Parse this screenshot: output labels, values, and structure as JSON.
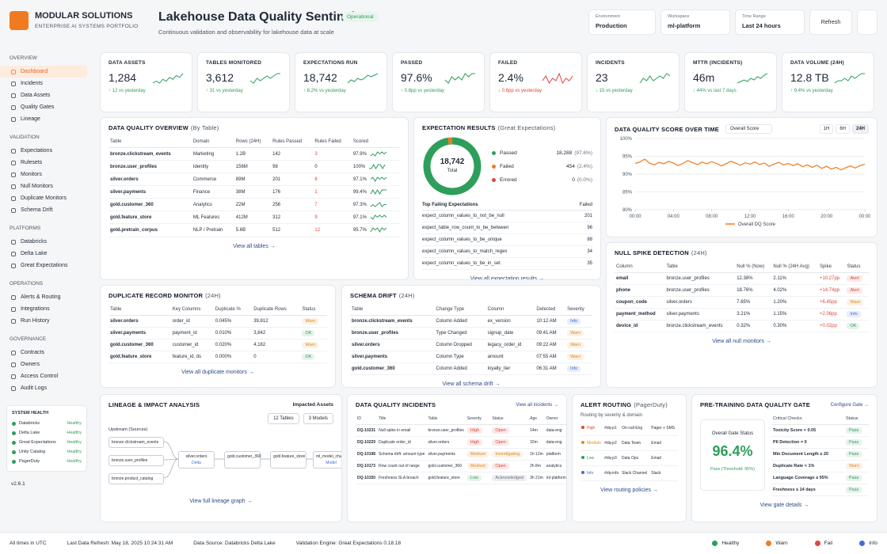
{
  "brand": {
    "name": "MODULAR SOLUTIONS",
    "tagline": "ENTERPRISE AI SYSTEMS PORTFOLIO"
  },
  "header": {
    "title": "Lakehouse Data Quality Sentinel",
    "status": "Operational",
    "subtitle": "Continuous validation and observability for lakehouse data at scale",
    "filters": [
      {
        "label": "Environment",
        "value": "Production"
      },
      {
        "label": "Workspace",
        "value": "ml-platform"
      },
      {
        "label": "Time Range",
        "value": "Last 24 hours"
      }
    ],
    "refresh": "Refresh"
  },
  "badge_colors": {
    "Warn": "#e08a1e",
    "OK": "#2e9e5b",
    "Alert": "#e0463b",
    "Info": "#3b6fd8",
    "High": "#e0463b",
    "Medium": "#e08a1e",
    "Low": "#2e9e5b",
    "Open": "#e0463b",
    "Investigating": "#e08a1e",
    "Acknowledged": "#6b7280",
    "Pass": "#2e9e5b",
    "Healthy": "#2e9e5b"
  },
  "sidebar": {
    "sections": [
      {
        "title": "OVERVIEW",
        "items": [
          {
            "label": "Dashboard",
            "active": true
          },
          {
            "label": "Incidents"
          },
          {
            "label": "Data Assets"
          },
          {
            "label": "Quality Gates"
          },
          {
            "label": "Lineage"
          }
        ]
      },
      {
        "title": "VALIDATION",
        "items": [
          {
            "label": "Expectations"
          },
          {
            "label": "Rulesets"
          },
          {
            "label": "Monitors"
          },
          {
            "label": "Null Monitors"
          },
          {
            "label": "Duplicate Monitors"
          },
          {
            "label": "Schema Drift"
          }
        ]
      },
      {
        "title": "PLATFORMS",
        "items": [
          {
            "label": "Databricks"
          },
          {
            "label": "Delta Lake"
          },
          {
            "label": "Great Expectations"
          }
        ]
      },
      {
        "title": "OPERATIONS",
        "items": [
          {
            "label": "Alerts & Routing"
          },
          {
            "label": "Integrations"
          },
          {
            "label": "Run History"
          }
        ]
      },
      {
        "title": "GOVERNANCE",
        "items": [
          {
            "label": "Contracts"
          },
          {
            "label": "Owners"
          },
          {
            "label": "Access Control"
          },
          {
            "label": "Audit Logs"
          }
        ]
      }
    ],
    "health_title": "SYSTEM HEALTH",
    "health": [
      {
        "label": "Databricks",
        "status": "Healthy"
      },
      {
        "label": "Delta Lake",
        "status": "Healthy"
      },
      {
        "label": "Great Expectations",
        "status": "Healthy"
      },
      {
        "label": "Unity Catalog",
        "status": "Healthy"
      },
      {
        "label": "PagerDuty",
        "status": "Healthy"
      }
    ],
    "version": "v2.6.1"
  },
  "kpis": [
    {
      "label": "DATA ASSETS",
      "value": "1,284",
      "delta": "↑ 12 vs yesterday",
      "color": "#2e9e5b",
      "spark": [
        4,
        5,
        4,
        6,
        5,
        7,
        6,
        8,
        7,
        9
      ]
    },
    {
      "label": "TABLES MONITORED",
      "value": "3,612",
      "delta": "↑ 31 vs yesterday",
      "color": "#2e9e5b",
      "spark": [
        5,
        4,
        6,
        5,
        6,
        7,
        6,
        7,
        8,
        8
      ]
    },
    {
      "label": "EXPECTATIONS RUN",
      "value": "18,742",
      "delta": "↑ 8.2% vs yesterday",
      "color": "#2e9e5b",
      "spark": [
        3,
        5,
        4,
        6,
        5,
        6,
        8,
        7,
        8,
        9
      ]
    },
    {
      "label": "PASSED",
      "value": "97.6%",
      "delta": "↑ 0.8pp vs yesterday",
      "color": "#2e9e5b",
      "spark": [
        6,
        5,
        7,
        6,
        7,
        6,
        8,
        7,
        8,
        8
      ]
    },
    {
      "label": "FAILED",
      "value": "2.4%",
      "delta": "↓ 0.6pp vs yesterday",
      "color": "#e0463b",
      "spark": [
        5,
        7,
        4,
        6,
        5,
        8,
        4,
        6,
        5,
        7
      ]
    },
    {
      "label": "INCIDENTS",
      "value": "23",
      "delta": "↓ 15 vs yesterday",
      "color": "#2e9e5b",
      "spark": [
        4,
        6,
        5,
        7,
        5,
        6,
        7,
        6,
        8,
        7
      ]
    },
    {
      "label": "MTTR (INCIDENTS)",
      "value": "46m",
      "delta": "↓ 44% vs last 7 days",
      "color": "#2e9e5b",
      "spark": [
        3,
        4,
        5,
        4,
        6,
        5,
        7,
        6,
        8,
        9
      ]
    },
    {
      "label": "DATA VOLUME (24H)",
      "value": "12.8 TB",
      "delta": "↑ 9.4% vs yesterday",
      "color": "#2e9e5b",
      "spark": [
        4,
        5,
        5,
        6,
        5,
        7,
        6,
        7,
        8,
        8
      ]
    }
  ],
  "quality_overview": {
    "title": "DATA QUALITY OVERVIEW",
    "sub": "(By Table)",
    "table": {
      "columns": [
        "Table",
        "Domain",
        "Rows (24H)",
        "Rules Passed",
        "Rules Failed",
        "Scored"
      ],
      "rows": [
        [
          "bronze.clickstream_events",
          "Marketing",
          "1.2B",
          "142",
          "3",
          "97.9%"
        ],
        [
          "bronze.user_profiles",
          "Identity",
          "156M",
          "98",
          "0",
          "100%"
        ],
        [
          "silver.orders",
          "Commerce",
          "89M",
          "201",
          "6",
          "97.1%"
        ],
        [
          "silver.payments",
          "Finance",
          "38M",
          "176",
          "1",
          "99.4%"
        ],
        [
          "gold.customer_360",
          "Analytics",
          "22M",
          "256",
          "7",
          "97.3%"
        ],
        [
          "gold.feature_store",
          "ML Features",
          "412M",
          "312",
          "9",
          "97.1%"
        ],
        [
          "gold.pretrain_corpus",
          "NLP / Pretrain",
          "5.6B",
          "512",
          "12",
          "95.7%"
        ]
      ],
      "highlight": {
        "col": 4,
        "color": "#e0463b"
      },
      "spark_color": "#2e9e5b",
      "sparks": [
        [
          5,
          6,
          5,
          7,
          6,
          7,
          6,
          7
        ],
        [
          6,
          6,
          7,
          6,
          7,
          7,
          6,
          7
        ],
        [
          5,
          6,
          4,
          6,
          5,
          6,
          5,
          6
        ],
        [
          6,
          7,
          6,
          7,
          6,
          7,
          7,
          7
        ],
        [
          5,
          6,
          5,
          6,
          7,
          5,
          6,
          6
        ],
        [
          5,
          4,
          6,
          5,
          6,
          5,
          6,
          5
        ],
        [
          4,
          6,
          5,
          6,
          4,
          6,
          5,
          6
        ]
      ]
    },
    "link": "View all tables →"
  },
  "expectations": {
    "title": "EXPECTATION RESULTS",
    "sub": "(Great Expectations)",
    "total": "18,742",
    "total_label": "Total",
    "segments": [
      {
        "name": "Passed",
        "value": 18288,
        "value_label": "18,288",
        "pct": "(97.6%)",
        "color": "#2e9e5b"
      },
      {
        "name": "Failed",
        "value": 454,
        "value_label": "454",
        "pct": "(2.4%)",
        "color": "#f07a1f"
      },
      {
        "name": "Errored",
        "value": 0,
        "value_label": "0",
        "pct": "(0.0%)",
        "color": "#e0463b"
      }
    ],
    "top_title": "Top Failing Expectations",
    "top_header": "Failed",
    "top": [
      [
        "expect_column_values_to_not_be_null",
        "201"
      ],
      [
        "expect_table_row_count_to_be_between",
        "96"
      ],
      [
        "expect_column_values_to_be_unique",
        "88"
      ],
      [
        "expect_column_values_to_match_regex",
        "34"
      ],
      [
        "expect_column_values_to_be_in_set",
        "35"
      ]
    ],
    "link": "View all expectation results →"
  },
  "chart_data": {
    "type": "line",
    "title": "DATA QUALITY SCORE OVER TIME",
    "dropdown": "Overall Score",
    "ranges": [
      "1H",
      "6H",
      "24H"
    ],
    "active_range": 2,
    "x": [
      0,
      0.5,
      1,
      1.5,
      2,
      2.5,
      3,
      3.5,
      4,
      4.5,
      5,
      5.5,
      6,
      6.5,
      7,
      7.5,
      8,
      8.5,
      9,
      9.5,
      10,
      10.5,
      11,
      11.5,
      12,
      12.5,
      13,
      13.5,
      14,
      14.5,
      15,
      15.5,
      16,
      16.5,
      17,
      17.5,
      18,
      18.5,
      19,
      19.5,
      20,
      20.5,
      21,
      21.5,
      22,
      22.5,
      23,
      23.5,
      24
    ],
    "series": [
      {
        "name": "Overall DQ Score",
        "color": "#f07a1f",
        "values": [
          93.0,
          93.4,
          94.2,
          93.1,
          92.6,
          93.3,
          92.9,
          93.6,
          93.1,
          92.4,
          93.0,
          93.8,
          93.2,
          92.7,
          93.4,
          92.9,
          93.5,
          93.0,
          92.3,
          92.9,
          93.6,
          93.1,
          92.5,
          93.2,
          92.8,
          93.4,
          92.7,
          93.1,
          92.2,
          92.8,
          93.3,
          92.6,
          93.0,
          92.4,
          92.9,
          92.1,
          92.6,
          91.9,
          92.5,
          91.6,
          92.2,
          91.4,
          91.9,
          91.2,
          91.8,
          92.3,
          91.7,
          92.4,
          92.8
        ]
      }
    ],
    "xlim": [
      0,
      24
    ],
    "xticks": [
      {
        "value": 0,
        "label": "00:00"
      },
      {
        "value": 4,
        "label": "04:00"
      },
      {
        "value": 8,
        "label": "08:00"
      },
      {
        "value": 12,
        "label": "12:00"
      },
      {
        "value": 16,
        "label": "16:00"
      },
      {
        "value": 20,
        "label": "20:00"
      },
      {
        "value": 24,
        "label": "00:00"
      }
    ],
    "ylim": [
      80,
      100
    ],
    "yticks": [
      {
        "value": 100,
        "label": "100%"
      },
      {
        "value": 95,
        "label": "95%"
      },
      {
        "value": 90,
        "label": "90%"
      },
      {
        "value": 85,
        "label": "85%"
      },
      {
        "value": 80,
        "label": "80%"
      }
    ],
    "grid": true
  },
  "null_spike": {
    "title": "NULL SPIKE DETECTION",
    "sub": "(24H)",
    "table": {
      "columns": [
        "Column",
        "Table",
        "Null % (Now)",
        "Null % (24H Avg)",
        "Spike",
        "Status"
      ],
      "rows": [
        [
          "email",
          "bronze.user_profiles",
          "12.38%",
          "2.11%",
          "+10.27pp",
          "Alert"
        ],
        [
          "phone",
          "bronze.user_profiles",
          "18.76%",
          "4.02%",
          "+14.74pp",
          "Alert"
        ],
        [
          "coupon_code",
          "silver.orders",
          "7.65%",
          "1.20%",
          "+6.45pp",
          "Warn"
        ],
        [
          "payment_method",
          "silver.payments",
          "3.21%",
          "1.15%",
          "+2.06pp",
          "Info"
        ],
        [
          "device_id",
          "bronze.clickstream_events",
          "0.32%",
          "0.30%",
          "+0.02pp",
          "OK"
        ]
      ],
      "highlight": {
        "col": 4,
        "color": "#e0463b"
      }
    },
    "link": "View all null monitors →"
  },
  "duplicates": {
    "title": "DUPLICATE RECORD MONITOR",
    "sub": "(24H)",
    "table": {
      "columns": [
        "Table",
        "Key Columns",
        "Duplicate %",
        "Duplicate Rows",
        "Status"
      ],
      "rows": [
        [
          "silver.orders",
          "order_id",
          "0.045%",
          "39,812",
          "Warn"
        ],
        [
          "silver.payments",
          "payment_id",
          "0.010%",
          "3,842",
          "OK"
        ],
        [
          "gold.customer_360",
          "customer_id",
          "0.020%",
          "4,182",
          "Warn"
        ],
        [
          "gold.feature_store",
          "feature_id, ds",
          "0.000%",
          "0",
          "OK"
        ]
      ]
    },
    "link": "View all duplicate monitors →"
  },
  "schema_drift": {
    "title": "SCHEMA DRIFT",
    "sub": "(24H)",
    "table": {
      "columns": [
        "Table",
        "Change Type",
        "Column",
        "Detected",
        "Severity"
      ],
      "rows": [
        [
          "bronze.clickstream_events",
          "Column Added",
          "ex_version",
          "10:12 AM",
          "Info"
        ],
        [
          "bronze.user_profiles",
          "Type Changed",
          "signup_date",
          "09:41 AM",
          "Warn"
        ],
        [
          "silver.orders",
          "Column Dropped",
          "legacy_order_id",
          "09:22 AM",
          "Warn"
        ],
        [
          "silver.payments",
          "Column Type",
          "amount",
          "07:55 AM",
          "Warn"
        ],
        [
          "gold.customer_360",
          "Column Added",
          "loyalty_tier",
          "06:31 AM",
          "Info"
        ]
      ]
    },
    "link": "View all schema drift →"
  },
  "lineage": {
    "title": "LINEAGE & IMPACT ANALYSIS",
    "impacted_label": "Impacted Assets",
    "chips": [
      "12 Tables",
      "3 Models"
    ],
    "upstream": "Upstream (Sources)",
    "sources": [
      "bronze.clickstream_events",
      "bronze.user_profiles",
      "bronze.product_catalog"
    ],
    "nodes": [
      {
        "label": "silver.orders",
        "sub": "Delta"
      },
      {
        "label": "gold.customer_360"
      },
      {
        "label": "gold.feature_store"
      },
      {
        "label": "ml_model_churn_v1",
        "sub": "Model"
      }
    ],
    "link": "View full lineage graph →"
  },
  "incidents": {
    "title": "DATA QUALITY INCIDENTS",
    "link_top": "View all incidents →",
    "table": {
      "columns": [
        "ID",
        "Title",
        "Table",
        "Severity",
        "Status",
        "Age",
        "Owner"
      ],
      "rows": [
        [
          "DQ-10231",
          "Null spike in email",
          "bronze.user_profiles",
          "High",
          "Open",
          "14m",
          "data-eng"
        ],
        [
          "DQ-10229",
          "Duplicate order_id",
          "silver.orders",
          "High",
          "Open",
          "32m",
          "data-eng"
        ],
        [
          "DQ-10198",
          "Schema drift: amount type",
          "silver.payments",
          "Medium",
          "Investigating",
          "1h 12m",
          "platform"
        ],
        [
          "DQ-10173",
          "Row count out of range",
          "gold.customer_360",
          "Medium",
          "Open",
          "2h 8m",
          "analytics"
        ],
        [
          "DQ-10150",
          "Freshness SLA breach",
          "gold.feature_store",
          "Low",
          "Acknowledged",
          "3h 21m",
          "ml-platform"
        ]
      ]
    }
  },
  "alert_routing": {
    "title": "ALERT ROUTING",
    "sub": "(PagerDuty)",
    "caption": "Routing by severity & domain",
    "rows": [
      [
        "High",
        "#dq-p1",
        "On-call Eng",
        "Pager + SMS"
      ],
      [
        "Medium",
        "#dq-p2",
        "Data Team",
        "Email"
      ],
      [
        "Low",
        "#dq-p3",
        "Data Ops",
        "Email"
      ],
      [
        "Info",
        "#dq-info",
        "Slack Channel",
        "Slack"
      ]
    ],
    "link": "View routing policies →"
  },
  "gate": {
    "title": "PRE-TRAINING DATA QUALITY GATE",
    "configure": "Configure Gate →",
    "status_label": "Overall Gate Status",
    "score": "96.4%",
    "result": "Pass (Threshold: 95%)",
    "color": "#2e9e5b",
    "table": {
      "columns": [
        "Critical Checks",
        "Status"
      ],
      "rows": [
        [
          "Toxicity Score < 0.05",
          "Pass"
        ],
        [
          "PII Detection = 0",
          "Pass"
        ],
        [
          "Min Document Length ≥ 20",
          "Pass"
        ],
        [
          "Duplicate Rate < 1%",
          "Warn"
        ],
        [
          "Language Coverage ≥ 95%",
          "Pass"
        ],
        [
          "Freshness ≤ 14 days",
          "Pass"
        ]
      ]
    },
    "link": "View gate details →"
  },
  "footer": {
    "items": [
      "All times in UTC",
      "Last Data Refresh: May 18, 2025 10:24:31 AM",
      "Data Source: Databricks Delta Lake",
      "Validation Engine: Great Expectations 0.18.18"
    ],
    "legend": [
      {
        "label": "Healthy",
        "color": "#2e9e5b"
      },
      {
        "label": "Warn",
        "color": "#f07a1f"
      },
      {
        "label": "Fail",
        "color": "#e0463b"
      },
      {
        "label": "Info",
        "color": "#3b6fd8"
      }
    ]
  }
}
